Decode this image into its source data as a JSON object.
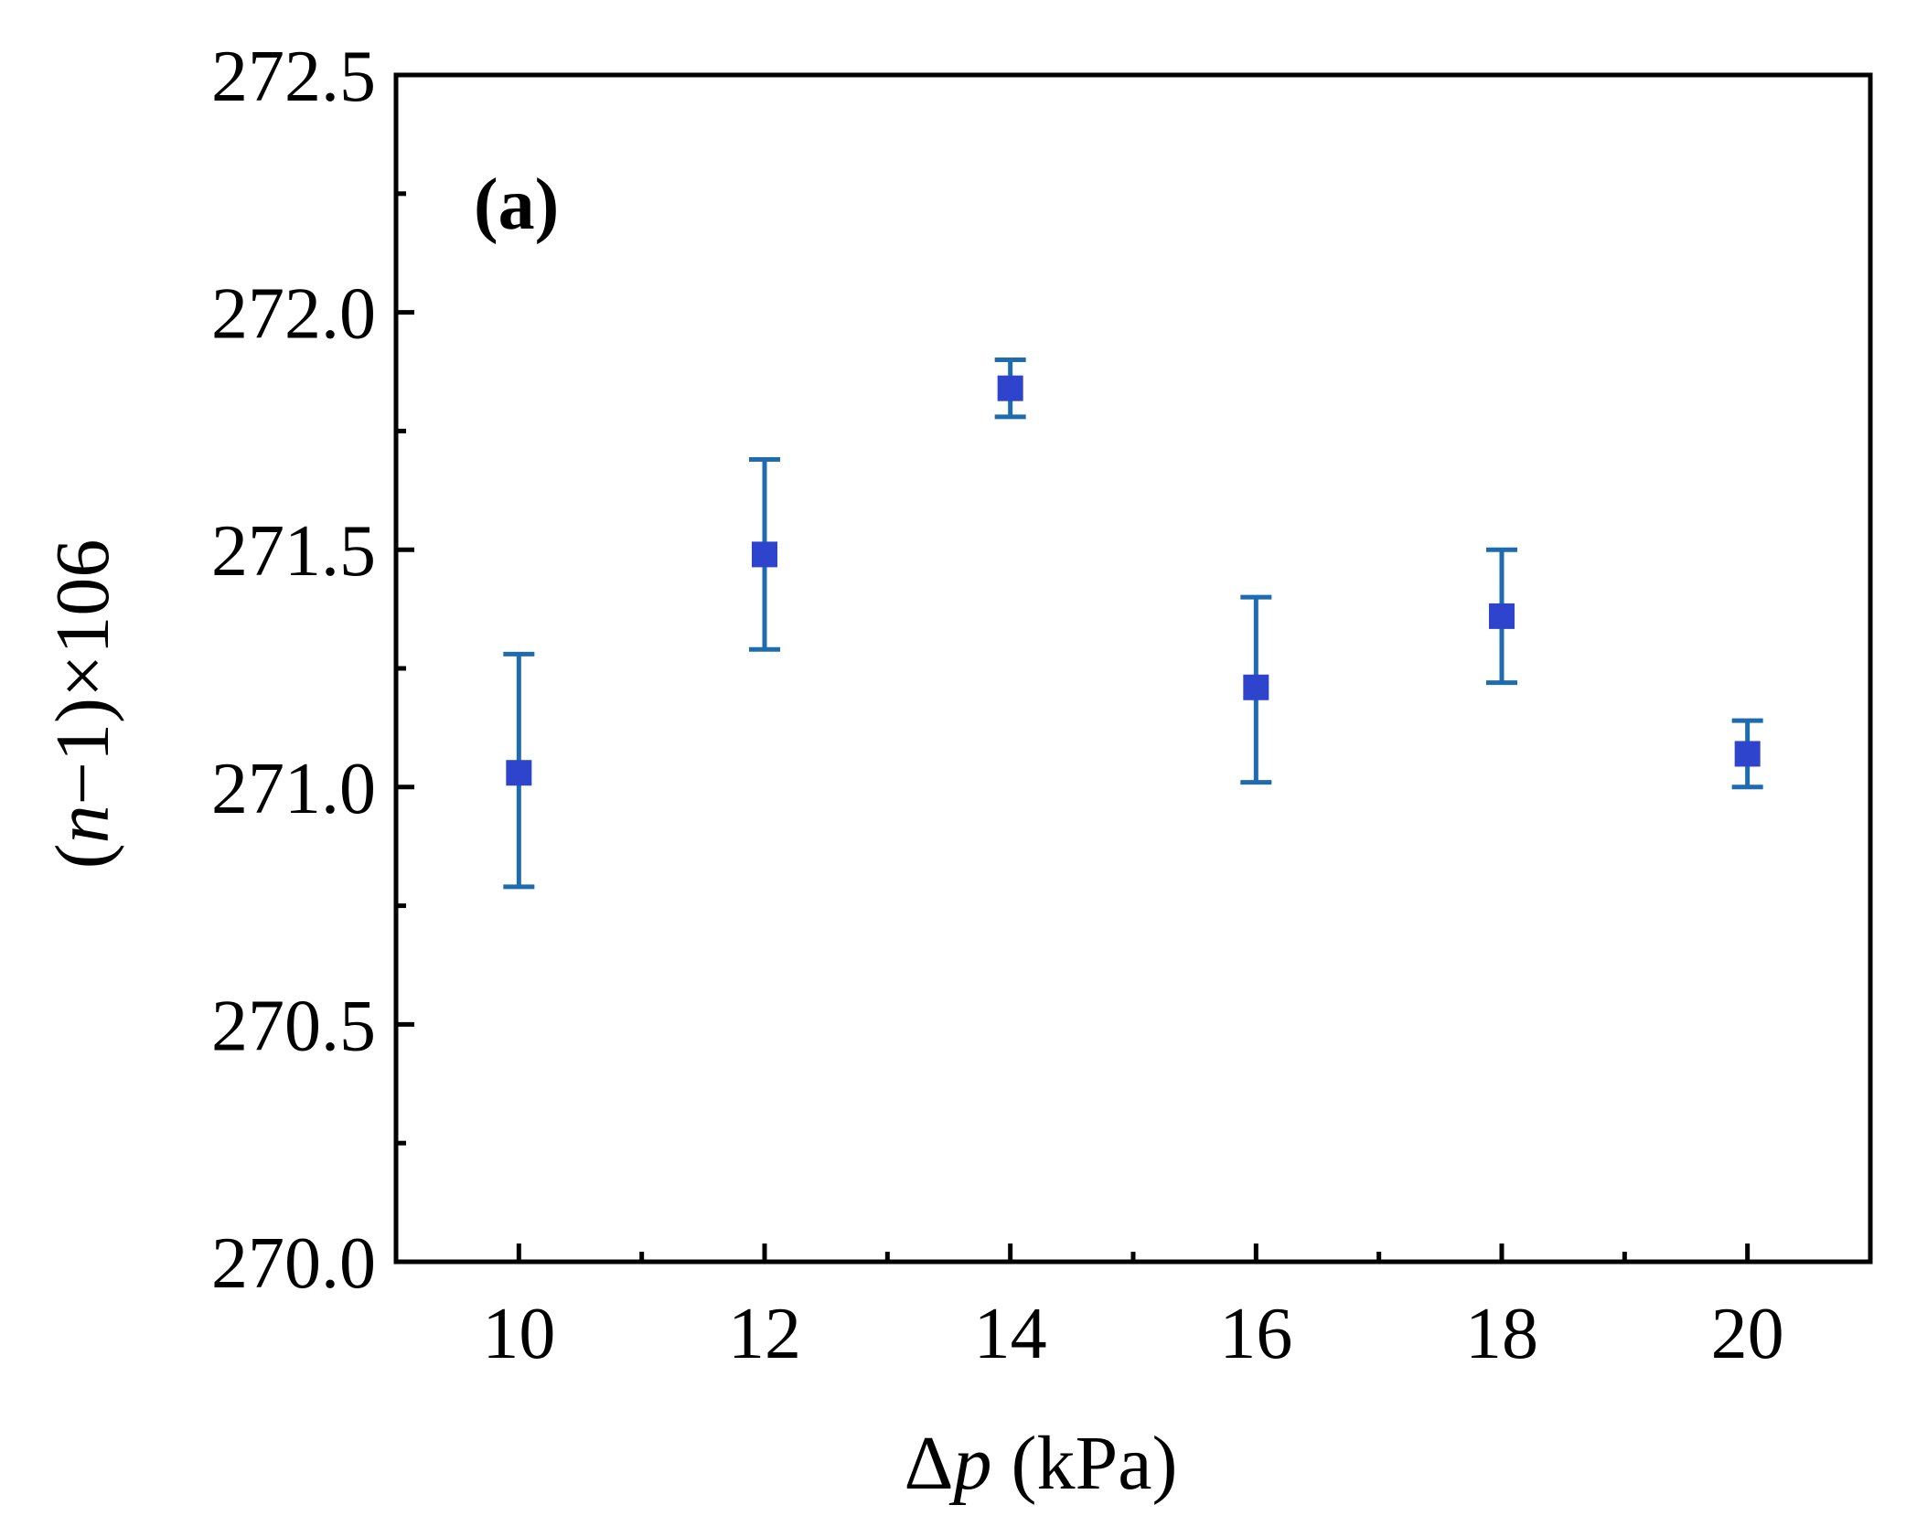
{
  "chart_data": {
    "type": "scatter",
    "panel_label": "(a)",
    "xlabel": {
      "prefix": "Δ",
      "symbol": "p",
      "unit": " (kPa)"
    },
    "ylabel": {
      "open": "(",
      "symbol": "n",
      "rest": "−1)×106"
    },
    "xlim": [
      9,
      21
    ],
    "ylim": [
      270.0,
      272.5
    ],
    "x_ticks": [
      10,
      12,
      14,
      16,
      18,
      20
    ],
    "x_tick_labels": [
      "10",
      "12",
      "14",
      "16",
      "18",
      "20"
    ],
    "x_minor_ticks": [
      11,
      13,
      15,
      17,
      19
    ],
    "y_ticks": [
      270.0,
      270.5,
      271.0,
      271.5,
      272.0,
      272.5
    ],
    "y_tick_labels": [
      "270.0",
      "270.5",
      "271.0",
      "271.5",
      "272.0",
      "272.5"
    ],
    "y_minor_ticks": [
      270.25,
      270.75,
      271.25,
      271.75,
      272.25
    ],
    "grid": false,
    "legend": "none",
    "colors": {
      "marker": "#2f44cc",
      "error_bar": "#1f6bb0",
      "axis": "#000000"
    },
    "series": [
      {
        "x": [
          10,
          12,
          14,
          16,
          18,
          20
        ],
        "y": [
          271.03,
          271.49,
          271.84,
          271.21,
          271.36,
          271.07
        ],
        "y_err_low": [
          270.79,
          271.29,
          271.78,
          271.01,
          271.22,
          271.0
        ],
        "y_err_high": [
          271.28,
          271.69,
          271.9,
          271.4,
          271.5,
          271.14
        ]
      }
    ]
  }
}
